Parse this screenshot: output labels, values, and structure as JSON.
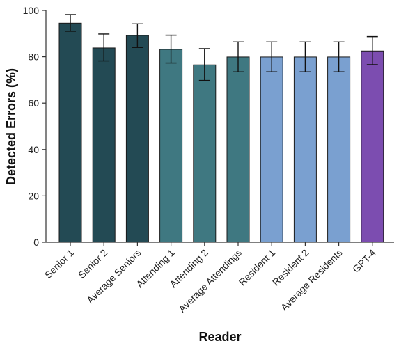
{
  "chart_data": {
    "type": "bar",
    "xlabel": "Reader",
    "ylabel": "Detected Errors (%)",
    "ylim": [
      0,
      100
    ],
    "yticks": [
      0,
      20,
      40,
      60,
      80,
      100
    ],
    "grid": false,
    "categories": [
      "Senior 1",
      "Senior 2",
      "Average Seniors",
      "Attending 1",
      "Attending 2",
      "Average Attendings",
      "Resident 1",
      "Resident 2",
      "Average Residents",
      "GPT-4"
    ],
    "values": [
      94.5,
      83.8,
      89.2,
      83.2,
      76.5,
      79.9,
      79.9,
      79.9,
      79.9,
      82.5
    ],
    "error_low": [
      91.0,
      78.2,
      84.0,
      77.3,
      69.8,
      73.5,
      73.5,
      73.5,
      73.5,
      76.6
    ],
    "error_high": [
      98.2,
      89.8,
      94.2,
      89.3,
      83.5,
      86.4,
      86.4,
      86.4,
      86.4,
      88.7
    ],
    "colors": [
      "#234a54",
      "#234a54",
      "#234a54",
      "#3f7881",
      "#3f7881",
      "#3f7881",
      "#7aa0d0",
      "#7aa0d0",
      "#7aa0d0",
      "#7c4db0"
    ]
  }
}
